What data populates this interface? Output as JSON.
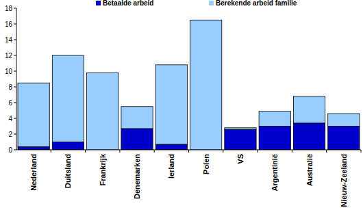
{
  "chart_data": {
    "type": "bar",
    "stacked": true,
    "legend": "top",
    "categories": [
      "Nederland",
      "Duitsland",
      "Frankrijk",
      "Denemarken",
      "Ierland",
      "Polen",
      "VS",
      "Argentinië",
      "Australië",
      "Nieuw-Zeeland"
    ],
    "series": [
      {
        "name": "Betaalde arbeid",
        "color": "#0000cc",
        "values": [
          0.4,
          1.0,
          0,
          2.7,
          0.7,
          0,
          2.6,
          3.0,
          3.4,
          3.0
        ]
      },
      {
        "name": "Berekende arbeid familie",
        "color": "#99ccff",
        "values": [
          8.1,
          11.0,
          9.8,
          2.8,
          10.1,
          16.5,
          0.2,
          1.9,
          3.4,
          1.6
        ]
      }
    ],
    "ylim": [
      0,
      18
    ],
    "yticks": [
      0,
      2,
      4,
      6,
      8,
      10,
      12,
      14,
      16,
      18
    ],
    "grid": false
  }
}
